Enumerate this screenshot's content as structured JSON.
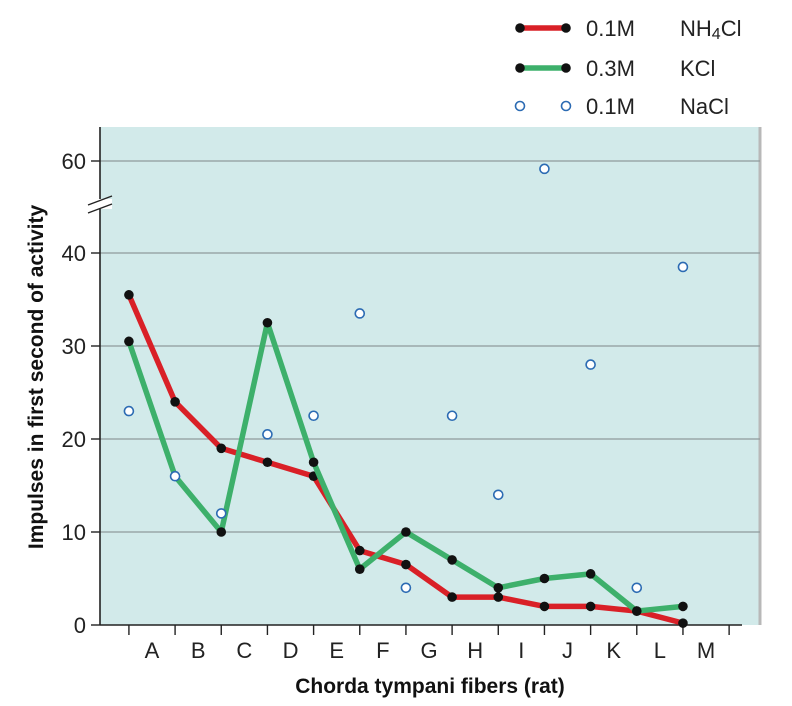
{
  "chart_data": {
    "type": "line",
    "xlabel": "Chorda tympani fibers (rat)",
    "ylabel": "Impulses in first second of activity",
    "categories": [
      "A",
      "B",
      "C",
      "D",
      "E",
      "F",
      "G",
      "H",
      "I",
      "J",
      "K",
      "L",
      "M"
    ],
    "y_ticks": [
      "0",
      "10",
      "20",
      "30",
      "40",
      "60"
    ],
    "y_axis_break": "between 40 and 60",
    "grid": "horizontal",
    "legend_position": "top-right",
    "series": [
      {
        "name": "0.1M NH4Cl",
        "concentration": "0.1M",
        "salt_main": "NH",
        "salt_sub": "4",
        "salt_tail": "Cl",
        "color": "#d92027",
        "style": "line-with-points",
        "x": [
          -0.5,
          0.5,
          1.5,
          2.5,
          3.5,
          4.5,
          5.5,
          6.5,
          7.5,
          8.5,
          9.5,
          10.5,
          11.5
        ],
        "values": [
          35.5,
          24,
          19,
          17.5,
          16,
          8,
          6.5,
          3,
          3,
          2,
          2,
          1.5,
          0.2
        ]
      },
      {
        "name": "0.3M KCl",
        "concentration": "0.3M",
        "salt_main": "KCl",
        "color": "#3db06b",
        "style": "line-with-points",
        "x": [
          -0.5,
          0.5,
          1.5,
          2.5,
          3.5,
          4.5,
          5.5,
          6.5,
          7.5,
          8.5,
          9.5,
          10.5,
          11.5
        ],
        "values": [
          30.5,
          16,
          10,
          32.5,
          17.5,
          6,
          10,
          7,
          4,
          5,
          5.5,
          1.5,
          2
        ]
      },
      {
        "name": "0.1M NaCl",
        "concentration": "0.1M",
        "salt_main": "NaCl",
        "color": "#2c6bb3",
        "style": "open-markers",
        "x": [
          -0.5,
          0.5,
          1.5,
          2.5,
          3.5,
          4.5,
          5.5,
          6.5,
          7.5,
          8.5,
          9.5,
          10.5,
          11.5
        ],
        "values": [
          23,
          16,
          12,
          20.5,
          22.5,
          33.5,
          4,
          22.5,
          14,
          58,
          28,
          4,
          38.5
        ]
      }
    ]
  }
}
